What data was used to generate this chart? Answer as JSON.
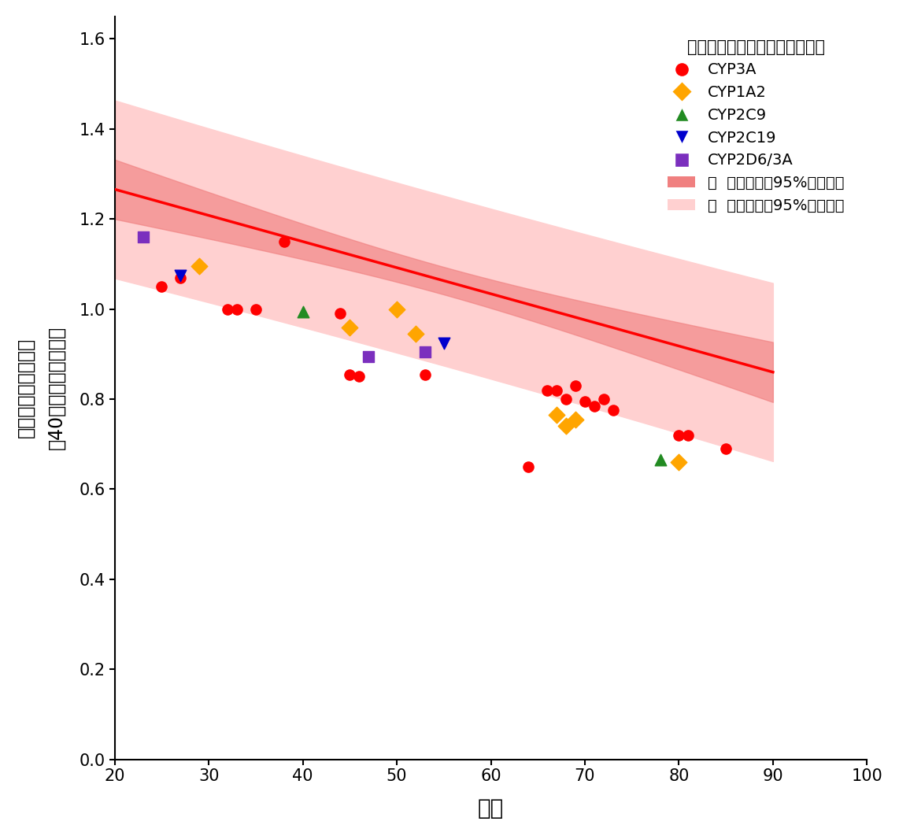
{
  "title": "薬剤の代謝に関わる酵素の種類",
  "xlabel": "年齢",
  "ylabel": "肝臓の薬物処理能力\n（40歳時との相対比）",
  "xlim": [
    20,
    100
  ],
  "ylim": [
    0.0,
    1.65
  ],
  "xticks": [
    20,
    30,
    40,
    50,
    60,
    70,
    80,
    90,
    100
  ],
  "yticks": [
    0.0,
    0.2,
    0.4,
    0.6,
    0.8,
    1.0,
    1.2,
    1.4,
    1.6
  ],
  "regression_slope": -0.0058,
  "regression_intercept": 1.382,
  "data_CYP3A": [
    [
      25,
      1.05
    ],
    [
      27,
      1.07
    ],
    [
      32,
      1.0
    ],
    [
      33,
      1.0
    ],
    [
      35,
      1.0
    ],
    [
      38,
      1.15
    ],
    [
      44,
      0.99
    ],
    [
      45,
      0.855
    ],
    [
      46,
      0.85
    ],
    [
      53,
      0.855
    ],
    [
      64,
      0.65
    ],
    [
      66,
      0.82
    ],
    [
      67,
      0.82
    ],
    [
      68,
      0.8
    ],
    [
      69,
      0.83
    ],
    [
      70,
      0.795
    ],
    [
      71,
      0.785
    ],
    [
      72,
      0.8
    ],
    [
      73,
      0.775
    ],
    [
      80,
      0.72
    ],
    [
      81,
      0.72
    ],
    [
      85,
      0.69
    ]
  ],
  "data_CYP1A2": [
    [
      29,
      1.095
    ],
    [
      45,
      0.96
    ],
    [
      50,
      1.0
    ],
    [
      52,
      0.945
    ],
    [
      67,
      0.765
    ],
    [
      68,
      0.74
    ],
    [
      69,
      0.755
    ],
    [
      80,
      0.66
    ]
  ],
  "data_CYP2C9": [
    [
      40,
      0.995
    ],
    [
      78,
      0.665
    ]
  ],
  "data_CYP2C19": [
    [
      27,
      1.075
    ],
    [
      55,
      0.925
    ]
  ],
  "data_CYP2D6_3A": [
    [
      23,
      1.16
    ],
    [
      47,
      0.895
    ],
    [
      53,
      0.905
    ]
  ],
  "color_CYP3A": "#FF0000",
  "color_CYP1A2": "#FFA500",
  "color_CYP2C9": "#228B22",
  "color_CYP2C19": "#0000CD",
  "color_CYP2D6_3A": "#7B2FBE",
  "color_regression": "#FF0000",
  "color_ci": "#F08080",
  "color_pi": "#FFD0D0",
  "background": "#FFFFFF"
}
